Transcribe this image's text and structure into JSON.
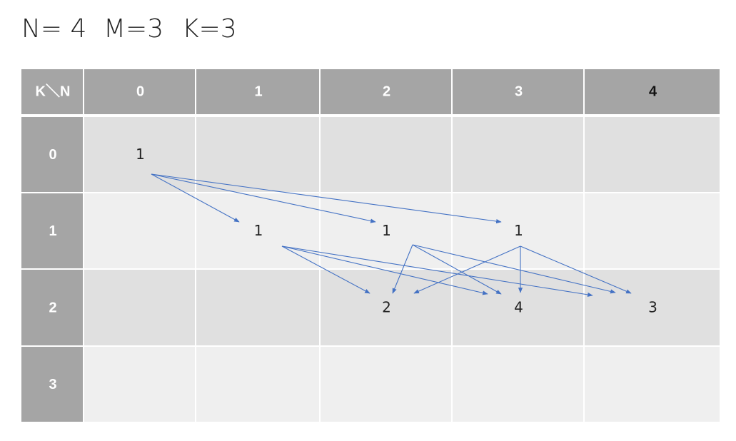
{
  "title": [
    "N= 4",
    "M=3",
    "K=3"
  ],
  "table": {
    "corner": "K＼N",
    "columns": [
      "0",
      "1",
      "2",
      "3",
      "4"
    ],
    "rows": [
      {
        "label": "0",
        "cells": [
          "1",
          null,
          null,
          null,
          null
        ]
      },
      {
        "label": "1",
        "cells": [
          null,
          "1",
          "1",
          "1",
          null
        ]
      },
      {
        "label": "2",
        "cells": [
          null,
          null,
          "2",
          "4",
          "3"
        ]
      },
      {
        "label": "3",
        "cells": [
          null,
          null,
          null,
          null,
          null
        ]
      }
    ]
  }
}
